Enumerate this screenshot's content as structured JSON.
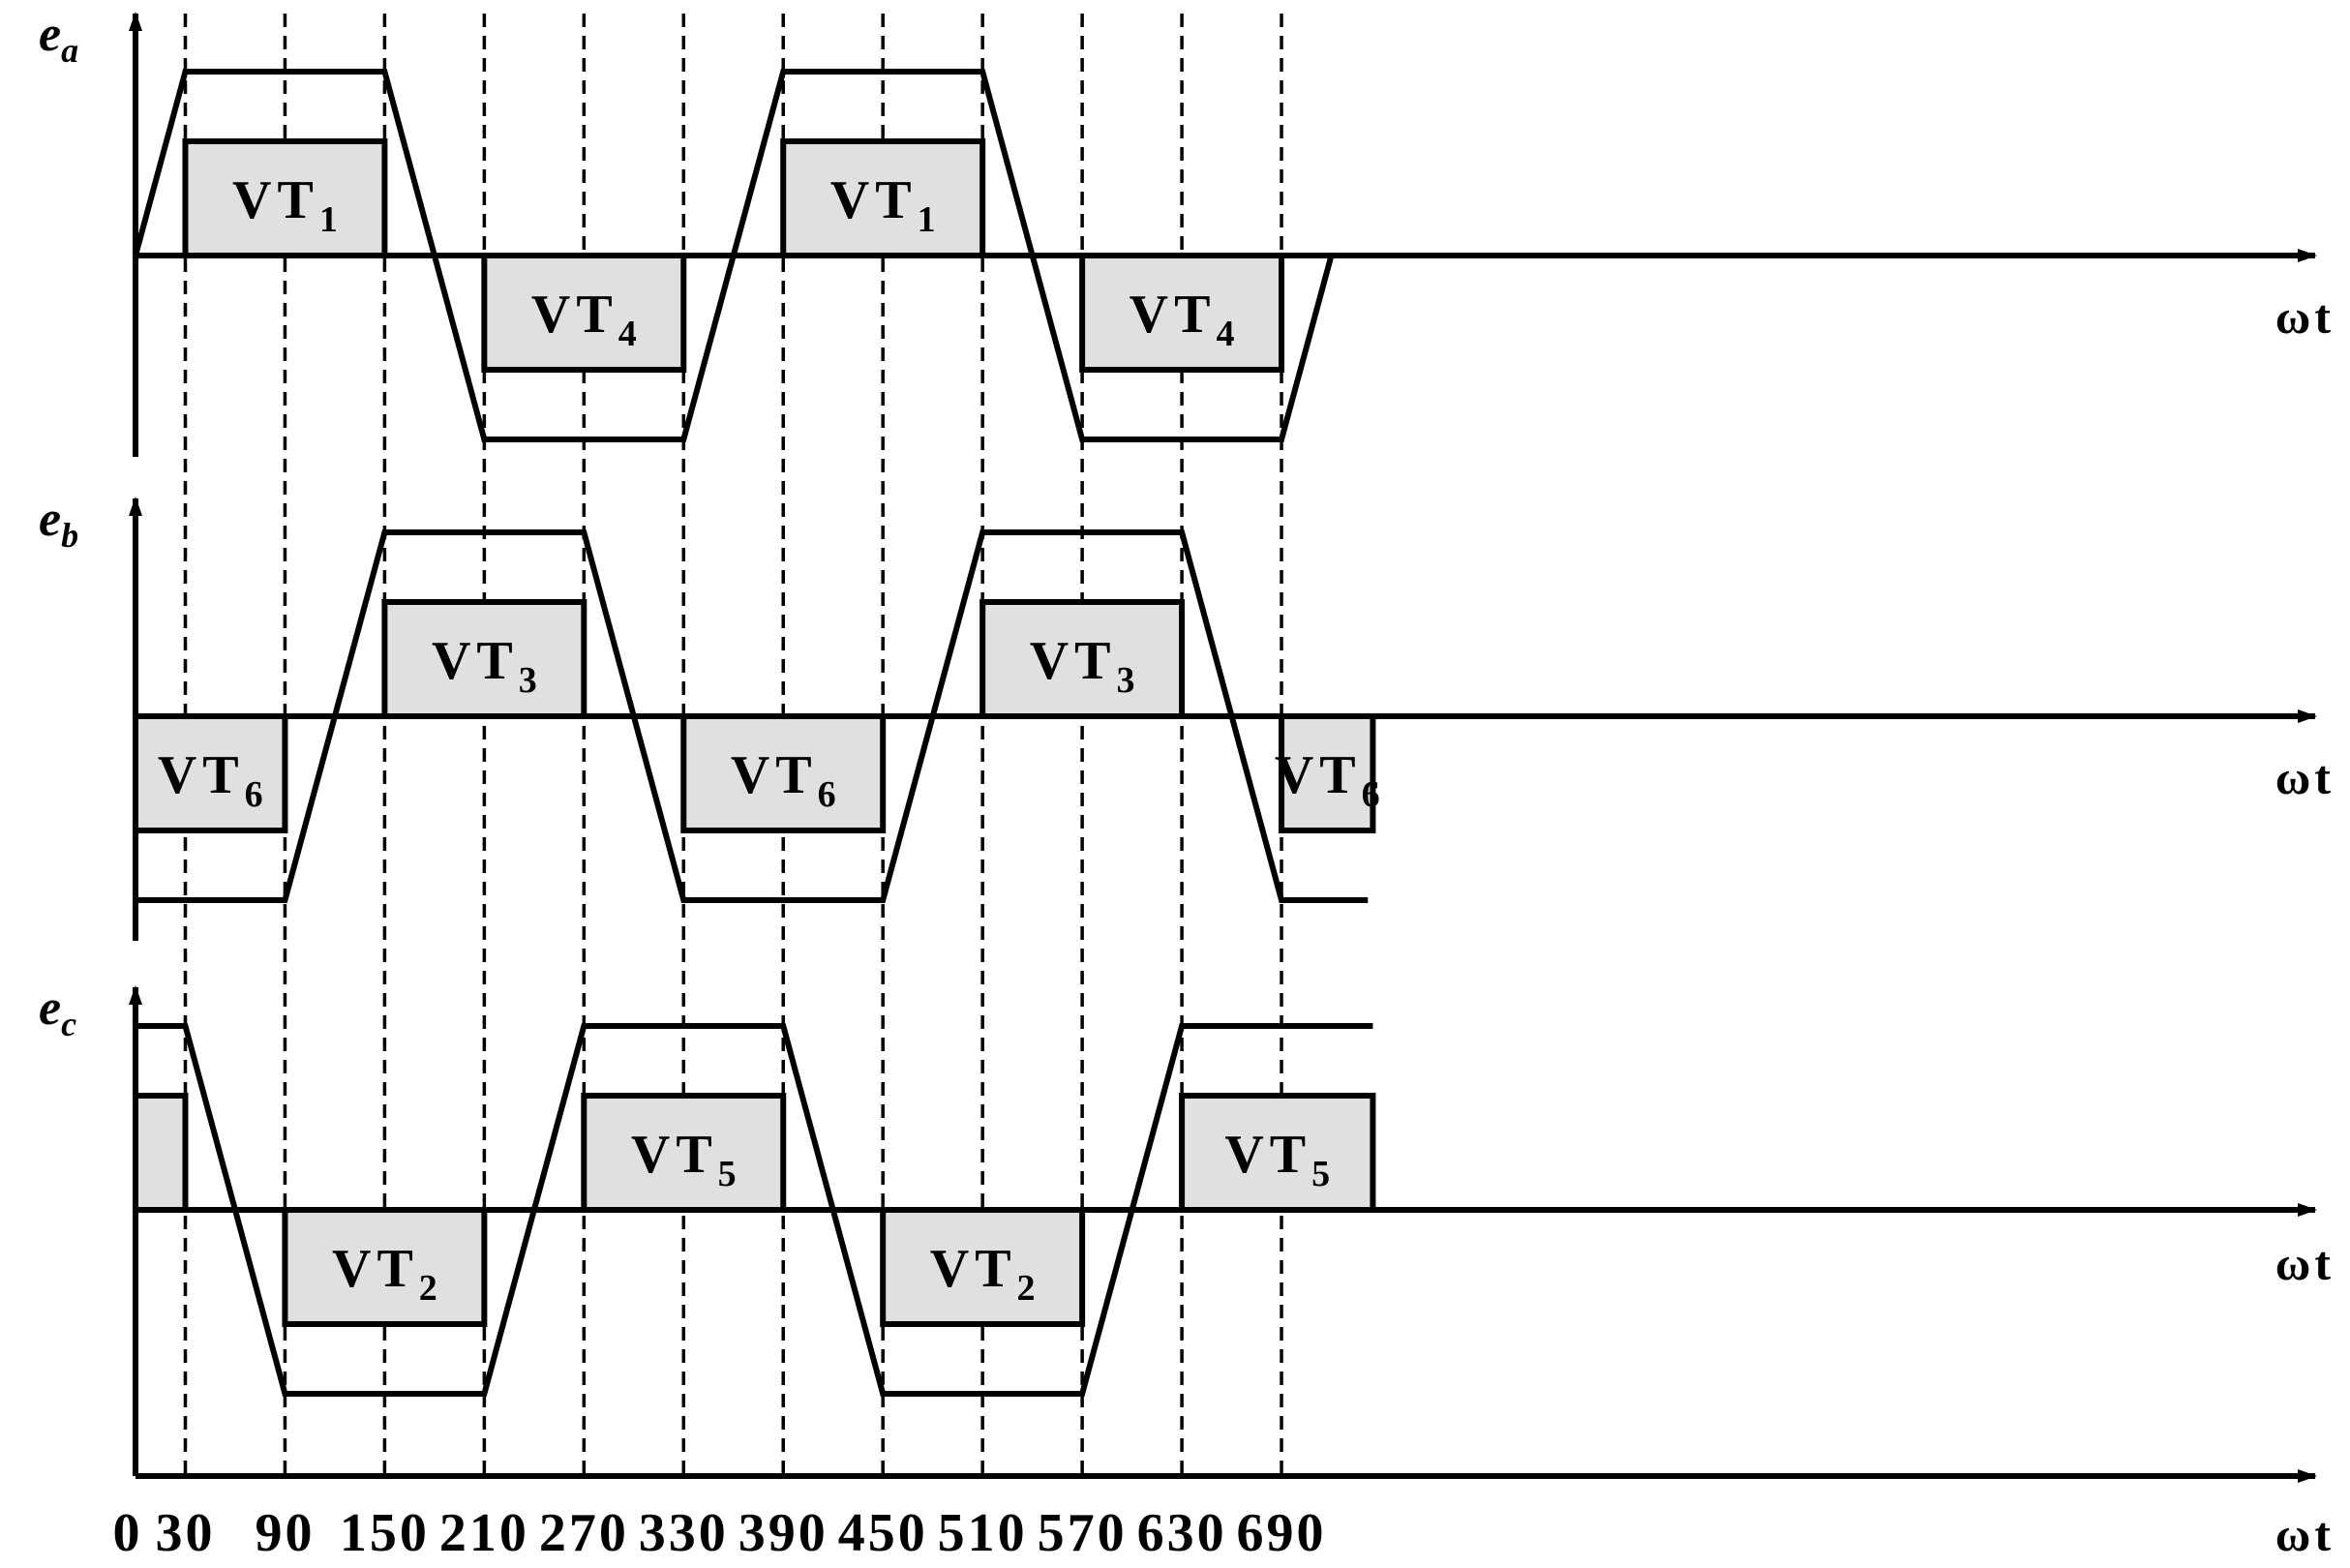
{
  "colors": {
    "line": "#000000",
    "fill": "#e0e0e0",
    "background": "#ffffff"
  },
  "x_unit_label": "ωt",
  "x_ticks": [
    0,
    30,
    90,
    150,
    210,
    270,
    330,
    390,
    450,
    510,
    570,
    630,
    690
  ],
  "x_tick_labels": [
    "0",
    "30",
    "90",
    "150",
    "210",
    "270",
    "330",
    "390",
    "450",
    "510",
    "570",
    "630",
    "690"
  ],
  "panels": [
    {
      "id": "a",
      "label": {
        "main": "e",
        "sub": "a"
      },
      "wave": [
        [
          0,
          0
        ],
        [
          30,
          1
        ],
        [
          150,
          1
        ],
        [
          210,
          -1
        ],
        [
          330,
          -1
        ],
        [
          390,
          1
        ],
        [
          510,
          1
        ],
        [
          570,
          -1
        ],
        [
          690,
          -1
        ],
        [
          720,
          0
        ]
      ],
      "pulses": [
        {
          "start": 30,
          "end": 150,
          "sign": 1,
          "text": "VT",
          "sub": "1"
        },
        {
          "start": 210,
          "end": 330,
          "sign": -1,
          "text": "VT",
          "sub": "4"
        },
        {
          "start": 390,
          "end": 510,
          "sign": 1,
          "text": "VT",
          "sub": "1"
        },
        {
          "start": 570,
          "end": 690,
          "sign": -1,
          "text": "VT",
          "sub": "4"
        }
      ]
    },
    {
      "id": "b",
      "label": {
        "main": "e",
        "sub": "b"
      },
      "wave": [
        [
          0,
          -1
        ],
        [
          90,
          -1
        ],
        [
          150,
          1
        ],
        [
          270,
          1
        ],
        [
          330,
          -1
        ],
        [
          450,
          -1
        ],
        [
          510,
          1
        ],
        [
          630,
          1
        ],
        [
          690,
          -1
        ],
        [
          742,
          -1
        ]
      ],
      "pulses": [
        {
          "start": 0,
          "end": 90,
          "sign": -1,
          "text": "VT",
          "sub": "6"
        },
        {
          "start": 150,
          "end": 270,
          "sign": 1,
          "text": "VT",
          "sub": "3"
        },
        {
          "start": 330,
          "end": 450,
          "sign": -1,
          "text": "VT",
          "sub": "6"
        },
        {
          "start": 510,
          "end": 630,
          "sign": 1,
          "text": "VT",
          "sub": "3"
        },
        {
          "start": 690,
          "end": 745,
          "sign": -1,
          "text": "VT",
          "sub": "6"
        }
      ]
    },
    {
      "id": "c",
      "label": {
        "main": "e",
        "sub": "c"
      },
      "wave": [
        [
          0,
          1
        ],
        [
          30,
          1
        ],
        [
          90,
          -1
        ],
        [
          210,
          -1
        ],
        [
          270,
          1
        ],
        [
          390,
          1
        ],
        [
          450,
          -1
        ],
        [
          570,
          -1
        ],
        [
          630,
          1
        ],
        [
          745,
          1
        ]
      ],
      "pulses": [
        {
          "start": 0,
          "end": 30,
          "sign": 1,
          "text": "",
          "sub": ""
        },
        {
          "start": 90,
          "end": 210,
          "sign": -1,
          "text": "VT",
          "sub": "2"
        },
        {
          "start": 270,
          "end": 390,
          "sign": 1,
          "text": "VT",
          "sub": "5"
        },
        {
          "start": 450,
          "end": 570,
          "sign": -1,
          "text": "VT",
          "sub": "2"
        },
        {
          "start": 630,
          "end": 745,
          "sign": 1,
          "text": "VT",
          "sub": "5"
        }
      ]
    }
  ]
}
